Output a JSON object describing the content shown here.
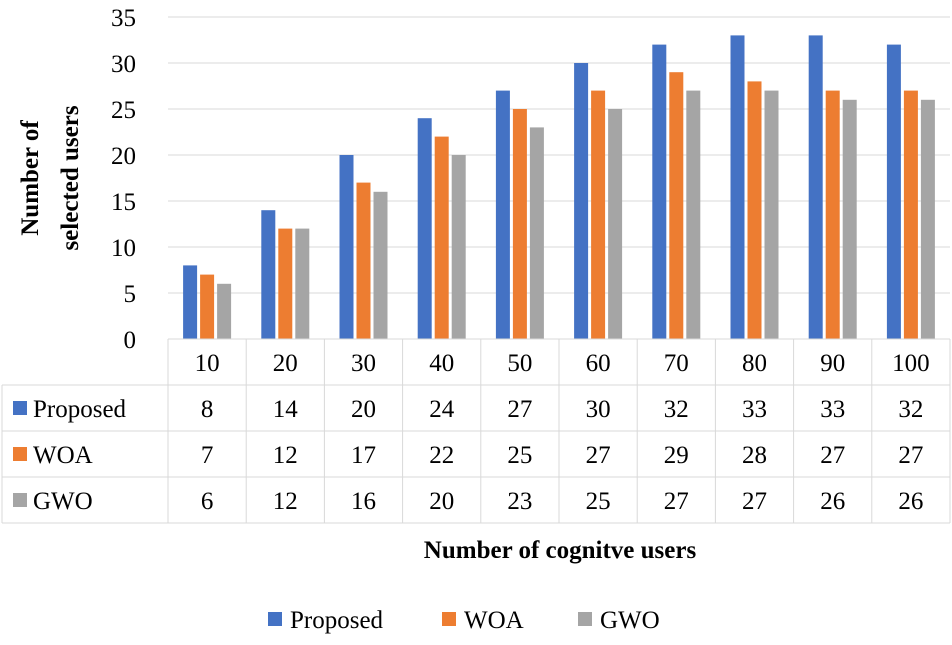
{
  "chart_data": {
    "type": "bar",
    "title": "",
    "categories": [
      "10",
      "20",
      "30",
      "40",
      "50",
      "60",
      "70",
      "80",
      "90",
      "100"
    ],
    "series": [
      {
        "name": "Proposed",
        "color": "#4472C4",
        "values": [
          8,
          14,
          20,
          24,
          27,
          30,
          32,
          33,
          33,
          32
        ]
      },
      {
        "name": "WOA",
        "color": "#ED7D31",
        "values": [
          7,
          12,
          17,
          22,
          25,
          27,
          29,
          28,
          27,
          27
        ]
      },
      {
        "name": "GWO",
        "color": "#A5A5A5",
        "values": [
          6,
          12,
          16,
          20,
          23,
          25,
          27,
          27,
          26,
          26
        ]
      }
    ],
    "ylabel_line1": "Number of",
    "ylabel_line2": "selected users",
    "xlabel": "Number of cognitve users",
    "ylim": [
      0,
      35
    ],
    "yticks": [
      "0",
      "5",
      "10",
      "15",
      "20",
      "25",
      "30",
      "35"
    ],
    "grid": true,
    "legend_position": "bottom",
    "data_table": true
  }
}
